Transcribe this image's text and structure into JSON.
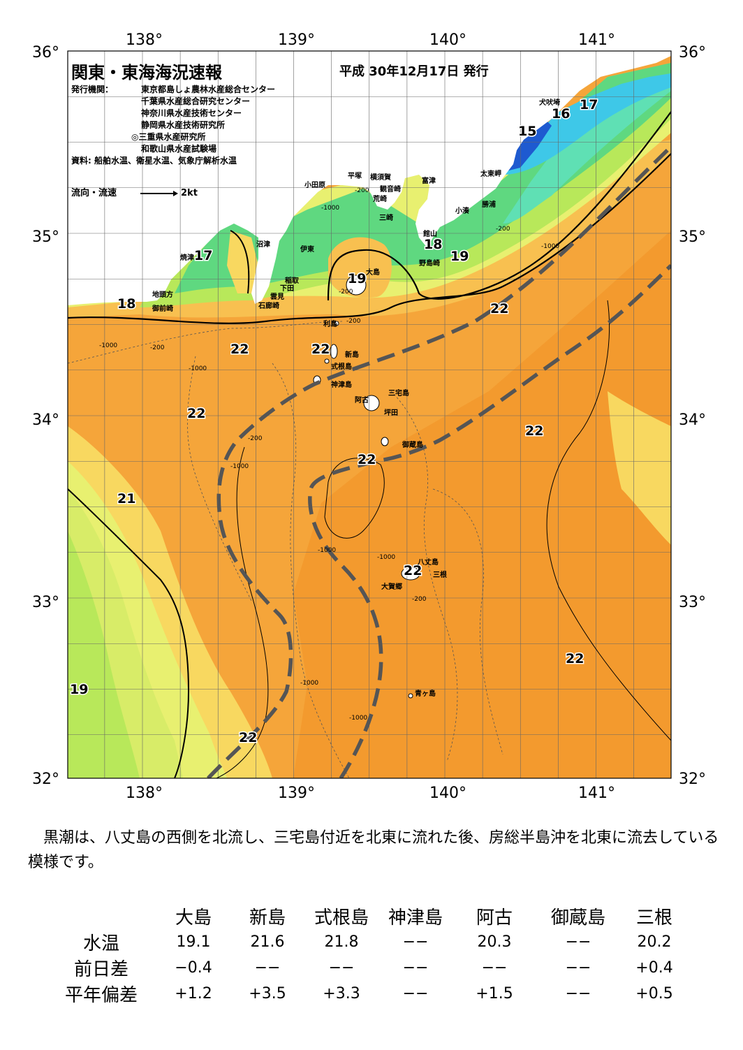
{
  "map": {
    "title": "関東・東海海況速報",
    "issue_date": "平成 30年12月17日 発行",
    "issuers_label": "発行機関：",
    "issuers": [
      "東京都島しょ農林水産総合センター",
      "千葉県水産総合研究センター",
      "神奈川県水産技術センター",
      "静岡県水産技術研究所",
      "◎三重県水産研究所",
      "和歌山県水産試験場"
    ],
    "sources": "資料: 船舶水温、衛星水温、気象庁解析水温",
    "flow_legend_label": "流向・流速",
    "flow_legend_unit": "2kt",
    "lon_labels": [
      "138°",
      "139°",
      "140°",
      "141°"
    ],
    "lat_labels": [
      "36°",
      "35°",
      "34°",
      "33°",
      "32°"
    ],
    "isotherm_labels": [
      "15",
      "16",
      "17",
      "17",
      "18",
      "18",
      "19",
      "19",
      "19",
      "21",
      "22",
      "22",
      "22",
      "22",
      "22",
      "22",
      "22",
      "22",
      "22"
    ],
    "depth_labels": [
      "-1000",
      "-200",
      "-1000",
      "-200",
      "-1000",
      "-200",
      "-1000",
      "-1000",
      "-200",
      "-1000",
      "-1000",
      "-1000",
      "-1000",
      "-200",
      "-200",
      "-200"
    ],
    "place_names": [
      "小田原",
      "平塚",
      "横須賀",
      "観音崎",
      "富津",
      "荒崎",
      "三崎",
      "太東岬",
      "勝浦",
      "小湊",
      "館山",
      "野島崎",
      "犬吠埼",
      "沼津",
      "伊東",
      "焼津",
      "稲取",
      "下田",
      "雲見",
      "石廊崎",
      "地頭方",
      "御前崎",
      "大島",
      "利島",
      "新島",
      "式根島",
      "神津島",
      "三宅島",
      "阿古",
      "坪田",
      "御蔵島",
      "八丈島",
      "三根",
      "大賀郷",
      "青ヶ島"
    ],
    "colors": {
      "cold_blue": "#1e5ad0",
      "cyan": "#3ec8e8",
      "aqua": "#5fe0b4",
      "green": "#3ed070",
      "yellow_green": "#b8e85a",
      "light_yellow": "#e8f070",
      "yellow": "#f8d860",
      "light_orange": "#f8c050",
      "orange": "#f5a53a",
      "deep_orange": "#f39a2e",
      "kuroshio_axis": "#555555"
    }
  },
  "comment": "黒潮は、八丈島の西側を北流し、三宅島付近を北東に流れた後、房総半島沖を北東に流去している模様です。",
  "stats": {
    "stations": [
      "大島",
      "新島",
      "式根島",
      "神津島",
      "阿古",
      "御蔵島",
      "三根"
    ],
    "rows": [
      {
        "label": "水温",
        "values": [
          "19.1",
          "21.6",
          "21.8",
          "−−",
          "20.3",
          "−−",
          "20.2"
        ]
      },
      {
        "label": "前日差",
        "values": [
          "−0.4",
          "−−",
          "−−",
          "−−",
          "−−",
          "−−",
          "+0.4"
        ]
      },
      {
        "label": "平年偏差",
        "values": [
          "+1.2",
          "+3.5",
          "+3.3",
          "−−",
          "+1.5",
          "−−",
          "+0.5"
        ]
      }
    ]
  }
}
